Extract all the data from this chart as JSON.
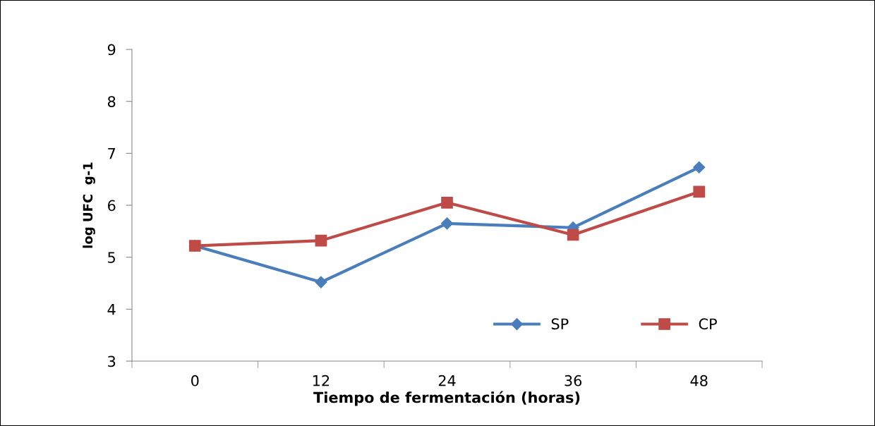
{
  "chart_data": {
    "type": "line",
    "categories": [
      "0",
      "12",
      "24",
      "36",
      "48"
    ],
    "series": [
      {
        "name": "SP",
        "color": "#4a7ebb",
        "marker": "diamond",
        "values": [
          5.22,
          4.52,
          5.65,
          5.57,
          6.73
        ]
      },
      {
        "name": "CP",
        "color": "#be4b48",
        "marker": "square",
        "values": [
          5.22,
          5.32,
          6.05,
          5.43,
          6.26
        ]
      }
    ],
    "xlabel": "Tiempo de fermentación (horas)",
    "ylabel": "log UFC  g-1",
    "ylim": [
      3,
      9
    ],
    "yticks": [
      3,
      4,
      5,
      6,
      7,
      8,
      9
    ],
    "grid": false,
    "legend": "bottom right",
    "line_style": "solid"
  }
}
